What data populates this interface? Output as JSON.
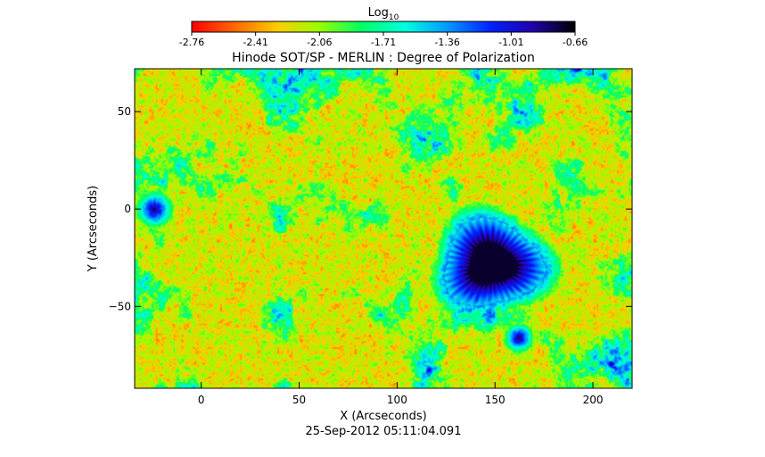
{
  "chart_data": {
    "type": "heatmap",
    "title": "Hinode SOT/SP - MERLIN : Degree of Polarization",
    "xlabel": "X (Arcseconds)",
    "ylabel": "Y (Arcseconds)",
    "timestamp": "25-Sep-2012 05:11:04.091",
    "xlim": [
      -34,
      220
    ],
    "ylim": [
      -92,
      72
    ],
    "x_ticks": [
      0,
      50,
      100,
      150,
      200
    ],
    "y_ticks": [
      -50,
      0,
      50
    ],
    "colorbar": {
      "label_base": "Log",
      "label_sub": "10",
      "min": -2.76,
      "max": -0.66,
      "ticks": [
        "-2.76",
        "-2.41",
        "-2.06",
        "-1.71",
        "-1.36",
        "-1.01",
        "-0.66"
      ],
      "colors": [
        "#ff0000",
        "#ff6600",
        "#ffcc00",
        "#99ff00",
        "#00ff66",
        "#00ffdd",
        "#0099ff",
        "#0022ff",
        "#2200aa",
        "#000000"
      ]
    },
    "features": {
      "sunspot": {
        "x": 148,
        "y": -28,
        "umbra_radius": 12,
        "penumbra_radius": 24
      },
      "pores": [
        {
          "x": -24,
          "y": 0,
          "radius": 5
        },
        {
          "x": 162,
          "y": -66,
          "radius": 4
        }
      ]
    }
  }
}
